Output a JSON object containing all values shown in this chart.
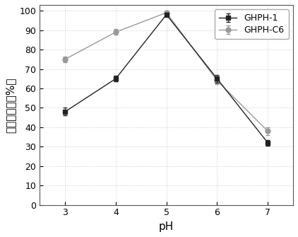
{
  "x": [
    3,
    4,
    5,
    6,
    7
  ],
  "ghph1_y": [
    48,
    65,
    98,
    65,
    32
  ],
  "ghph1_yerr": [
    2.0,
    1.5,
    1.0,
    2.0,
    1.5
  ],
  "ghphc6_y": [
    75,
    89,
    99,
    64,
    38
  ],
  "ghphc6_yerr": [
    1.5,
    1.5,
    1.0,
    2.0,
    2.0
  ],
  "ghph1_color": "#222222",
  "ghphc6_color": "#999999",
  "xlabel": "pH",
  "ylabel": "相对酶活力（%）",
  "legend1": "GHPH-1",
  "legend2": "GHPH-C6",
  "xlim": [
    2.5,
    7.5
  ],
  "ylim": [
    0,
    103
  ],
  "yticks": [
    0,
    10,
    20,
    30,
    40,
    50,
    60,
    70,
    80,
    90,
    100
  ],
  "xticks": [
    3,
    4,
    5,
    6,
    7
  ],
  "bg_color": "#ffffff",
  "grid_color": "#cccccc",
  "label_fontsize": 11,
  "tick_fontsize": 9,
  "legend_fontsize": 9,
  "linewidth": 1.0,
  "markersize": 5,
  "capsize": 2,
  "elinewidth": 0.8
}
